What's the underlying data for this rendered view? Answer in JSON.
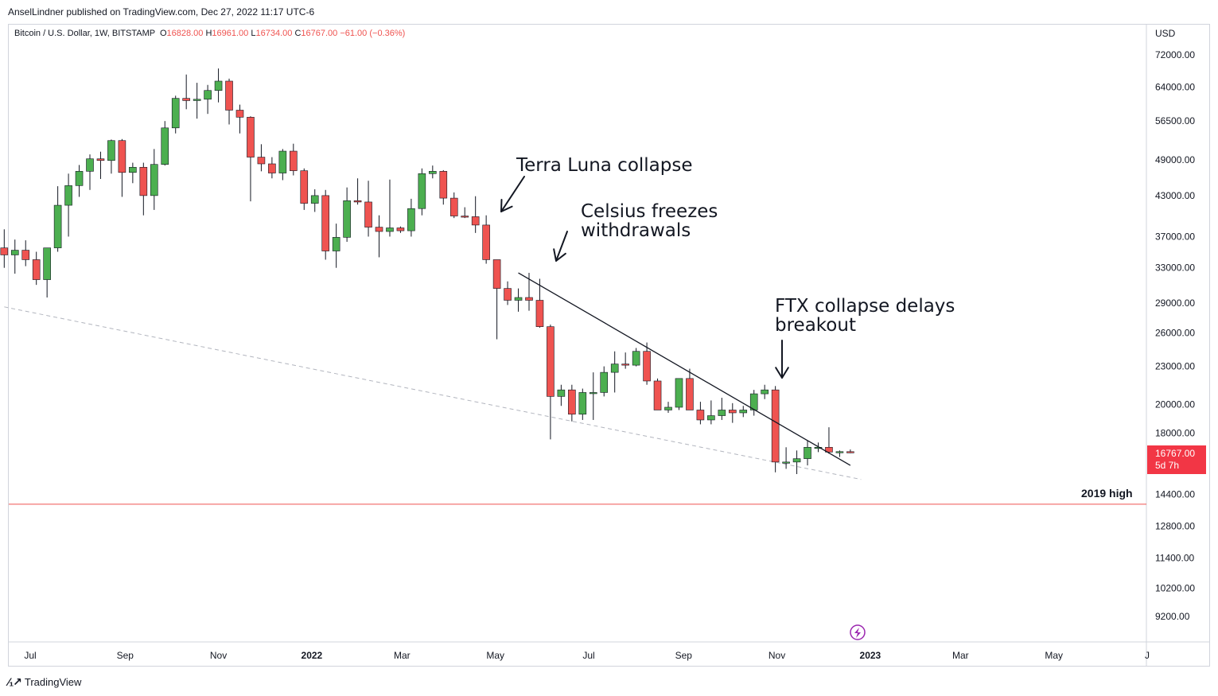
{
  "header": {
    "publisher": "AnselLindner published on TradingView.com, Dec 27, 2022 11:17 UTC-6"
  },
  "symbol": {
    "name": "Bitcoin / U.S. Dollar, 1W, BITSTAMP",
    "open_label": "O",
    "open": "16828.00",
    "high_label": "H",
    "high": "16961.00",
    "low_label": "L",
    "low": "16734.00",
    "close_label": "C",
    "close": "16767.00",
    "change": "−61.00 (−0.36%)"
  },
  "price_axis": {
    "currency": "USD",
    "ticks": [
      "72000.00",
      "64000.00",
      "56500.00",
      "49000.00",
      "43000.00",
      "37000.00",
      "33000.00",
      "29000.00",
      "26000.00",
      "23000.00",
      "20000.00",
      "18000.00",
      "14400.00",
      "12800.00",
      "11400.00",
      "10200.00",
      "9200.00"
    ]
  },
  "last_price": {
    "value": "16767.00",
    "countdown": "5d 7h"
  },
  "annotations": {
    "terra": "Terra Luna collapse",
    "celsius": "Celsius freezes\nwithdrawals",
    "ftx": "FTX collapse delays\nbreakout",
    "hline_label": "2019 high"
  },
  "footer": {
    "brand": "TradingView"
  },
  "colors": {
    "up": "#4caf50",
    "down": "#ef5350",
    "wick": "#131722",
    "hline": "#ef5350",
    "trend": "#131722",
    "support": "#b2b5be"
  },
  "chart_data": {
    "type": "candlestick",
    "title": "Bitcoin / U.S. Dollar, 1W, BITSTAMP",
    "scale": "log",
    "ylabel": "USD",
    "ylim": [
      8500,
      80000
    ],
    "x_ticks": [
      {
        "label": "Jul",
        "date": "2021-07-01"
      },
      {
        "label": "Sep",
        "date": "2021-09-01"
      },
      {
        "label": "Nov",
        "date": "2021-11-01"
      },
      {
        "label": "2022",
        "date": "2022-01-01",
        "bold": true
      },
      {
        "label": "Mar",
        "date": "2022-03-01"
      },
      {
        "label": "May",
        "date": "2022-05-01"
      },
      {
        "label": "Jul",
        "date": "2022-07-01"
      },
      {
        "label": "Sep",
        "date": "2022-09-01"
      },
      {
        "label": "Nov",
        "date": "2022-11-01"
      },
      {
        "label": "2023",
        "date": "2023-01-01",
        "bold": true
      },
      {
        "label": "Mar",
        "date": "2023-03-01"
      },
      {
        "label": "May",
        "date": "2023-05-01"
      },
      {
        "label": "J",
        "date": "2023-07-01"
      }
    ],
    "candles": [
      {
        "date": "2021-06-14",
        "o": 35500,
        "h": 38000,
        "l": 33000,
        "c": 34600
      },
      {
        "date": "2021-06-21",
        "o": 34600,
        "h": 36600,
        "l": 32300,
        "c": 35200
      },
      {
        "date": "2021-06-28",
        "o": 35200,
        "h": 36500,
        "l": 33200,
        "c": 34000
      },
      {
        "date": "2021-07-05",
        "o": 34000,
        "h": 35000,
        "l": 31000,
        "c": 31600
      },
      {
        "date": "2021-07-12",
        "o": 31600,
        "h": 35500,
        "l": 29600,
        "c": 35500
      },
      {
        "date": "2021-07-19",
        "o": 35500,
        "h": 44500,
        "l": 35000,
        "c": 41500
      },
      {
        "date": "2021-07-26",
        "o": 41500,
        "h": 46600,
        "l": 37000,
        "c": 44600
      },
      {
        "date": "2021-08-02",
        "o": 44600,
        "h": 48100,
        "l": 42800,
        "c": 47000
      },
      {
        "date": "2021-08-09",
        "o": 47000,
        "h": 50000,
        "l": 43900,
        "c": 49200
      },
      {
        "date": "2021-08-16",
        "o": 49200,
        "h": 50500,
        "l": 45700,
        "c": 48900
      },
      {
        "date": "2021-08-23",
        "o": 48900,
        "h": 52800,
        "l": 46600,
        "c": 52600
      },
      {
        "date": "2021-08-30",
        "o": 52600,
        "h": 52900,
        "l": 42800,
        "c": 46800
      },
      {
        "date": "2021-09-06",
        "o": 46800,
        "h": 48500,
        "l": 45000,
        "c": 47700
      },
      {
        "date": "2021-09-13",
        "o": 47700,
        "h": 48500,
        "l": 40000,
        "c": 43000
      },
      {
        "date": "2021-09-20",
        "o": 43000,
        "h": 51000,
        "l": 40800,
        "c": 48200
      },
      {
        "date": "2021-09-27",
        "o": 48200,
        "h": 56500,
        "l": 48000,
        "c": 55100
      },
      {
        "date": "2021-10-04",
        "o": 55100,
        "h": 62000,
        "l": 54000,
        "c": 61400
      },
      {
        "date": "2021-10-11",
        "o": 61400,
        "h": 67000,
        "l": 59000,
        "c": 60900
      },
      {
        "date": "2021-10-18",
        "o": 60900,
        "h": 65000,
        "l": 57000,
        "c": 61200
      },
      {
        "date": "2021-10-25",
        "o": 61200,
        "h": 64500,
        "l": 58000,
        "c": 63200
      },
      {
        "date": "2021-11-01",
        "o": 63200,
        "h": 68500,
        "l": 60500,
        "c": 65400
      },
      {
        "date": "2021-11-08",
        "o": 65400,
        "h": 66000,
        "l": 55800,
        "c": 58800
      },
      {
        "date": "2021-11-15",
        "o": 58800,
        "h": 60000,
        "l": 54000,
        "c": 57300
      },
      {
        "date": "2021-11-22",
        "o": 57300,
        "h": 57500,
        "l": 42100,
        "c": 49500
      },
      {
        "date": "2021-11-29",
        "o": 49500,
        "h": 51900,
        "l": 47000,
        "c": 48300
      },
      {
        "date": "2021-12-06",
        "o": 48300,
        "h": 49500,
        "l": 45800,
        "c": 46700
      },
      {
        "date": "2021-12-13",
        "o": 46700,
        "h": 51000,
        "l": 45500,
        "c": 50600
      },
      {
        "date": "2021-12-20",
        "o": 50600,
        "h": 52000,
        "l": 46300,
        "c": 47100
      },
      {
        "date": "2021-12-27",
        "o": 47100,
        "h": 47500,
        "l": 40800,
        "c": 41800
      },
      {
        "date": "2022-01-03",
        "o": 41800,
        "h": 44000,
        "l": 40500,
        "c": 43000
      },
      {
        "date": "2022-01-10",
        "o": 43000,
        "h": 43900,
        "l": 34000,
        "c": 35100
      },
      {
        "date": "2022-01-17",
        "o": 35100,
        "h": 38800,
        "l": 33000,
        "c": 36900
      },
      {
        "date": "2022-01-24",
        "o": 36900,
        "h": 44300,
        "l": 36300,
        "c": 42200
      },
      {
        "date": "2022-01-31",
        "o": 42200,
        "h": 45800,
        "l": 41600,
        "c": 42000
      },
      {
        "date": "2022-02-07",
        "o": 42000,
        "h": 45400,
        "l": 37000,
        "c": 38300
      },
      {
        "date": "2022-02-14",
        "o": 38300,
        "h": 40000,
        "l": 34300,
        "c": 37700
      },
      {
        "date": "2022-02-21",
        "o": 37700,
        "h": 45600,
        "l": 37000,
        "c": 38200
      },
      {
        "date": "2022-02-28",
        "o": 38200,
        "h": 38400,
        "l": 37500,
        "c": 37800
      },
      {
        "date": "2022-03-07",
        "o": 37800,
        "h": 42500,
        "l": 37000,
        "c": 41000
      },
      {
        "date": "2022-03-14",
        "o": 41000,
        "h": 47500,
        "l": 40000,
        "c": 46600
      },
      {
        "date": "2022-03-21",
        "o": 46600,
        "h": 48000,
        "l": 45800,
        "c": 47000
      },
      {
        "date": "2022-03-28",
        "o": 47000,
        "h": 47200,
        "l": 41600,
        "c": 42600
      },
      {
        "date": "2022-04-04",
        "o": 42600,
        "h": 43500,
        "l": 39600,
        "c": 39900
      },
      {
        "date": "2022-04-11",
        "o": 39900,
        "h": 41200,
        "l": 39600,
        "c": 39800
      },
      {
        "date": "2022-04-18",
        "o": 39800,
        "h": 42900,
        "l": 37500,
        "c": 38600
      },
      {
        "date": "2022-04-25",
        "o": 38600,
        "h": 40000,
        "l": 33500,
        "c": 34000
      },
      {
        "date": "2022-05-02",
        "o": 34000,
        "h": 34000,
        "l": 25400,
        "c": 30600
      },
      {
        "date": "2022-05-09",
        "o": 30600,
        "h": 31400,
        "l": 28800,
        "c": 29300
      },
      {
        "date": "2022-05-16",
        "o": 29300,
        "h": 30600,
        "l": 28100,
        "c": 29600
      },
      {
        "date": "2022-05-23",
        "o": 29600,
        "h": 32400,
        "l": 28200,
        "c": 29300
      },
      {
        "date": "2022-05-30",
        "o": 29300,
        "h": 31700,
        "l": 26500,
        "c": 26600
      },
      {
        "date": "2022-06-06",
        "o": 26600,
        "h": 26800,
        "l": 17600,
        "c": 20600
      },
      {
        "date": "2022-06-13",
        "o": 20600,
        "h": 21500,
        "l": 19900,
        "c": 21100
      },
      {
        "date": "2022-06-20",
        "o": 21100,
        "h": 21500,
        "l": 18800,
        "c": 19300
      },
      {
        "date": "2022-06-27",
        "o": 19300,
        "h": 21200,
        "l": 18900,
        "c": 20900
      },
      {
        "date": "2022-07-04",
        "o": 20900,
        "h": 22500,
        "l": 18900,
        "c": 20900
      },
      {
        "date": "2022-07-11",
        "o": 20900,
        "h": 23000,
        "l": 20600,
        "c": 22500
      },
      {
        "date": "2022-07-18",
        "o": 22500,
        "h": 24300,
        "l": 20900,
        "c": 23200
      },
      {
        "date": "2022-07-25",
        "o": 23200,
        "h": 24200,
        "l": 22800,
        "c": 23100
      },
      {
        "date": "2022-08-01",
        "o": 23100,
        "h": 24600,
        "l": 23000,
        "c": 24300
      },
      {
        "date": "2022-08-08",
        "o": 24300,
        "h": 25100,
        "l": 21500,
        "c": 21800
      },
      {
        "date": "2022-08-15",
        "o": 21800,
        "h": 22000,
        "l": 19600,
        "c": 19600
      },
      {
        "date": "2022-08-22",
        "o": 19600,
        "h": 20200,
        "l": 19400,
        "c": 19800
      },
      {
        "date": "2022-08-29",
        "o": 19800,
        "h": 22000,
        "l": 19600,
        "c": 22000
      },
      {
        "date": "2022-09-05",
        "o": 22000,
        "h": 22800,
        "l": 19700,
        "c": 19600
      },
      {
        "date": "2022-09-12",
        "o": 19600,
        "h": 20200,
        "l": 18600,
        "c": 18900
      },
      {
        "date": "2022-09-19",
        "o": 18900,
        "h": 20300,
        "l": 18600,
        "c": 19200
      },
      {
        "date": "2022-09-26",
        "o": 19200,
        "h": 20500,
        "l": 18900,
        "c": 19600
      },
      {
        "date": "2022-10-03",
        "o": 19600,
        "h": 20100,
        "l": 18700,
        "c": 19400
      },
      {
        "date": "2022-10-10",
        "o": 19400,
        "h": 19900,
        "l": 19100,
        "c": 19600
      },
      {
        "date": "2022-10-17",
        "o": 19600,
        "h": 21100,
        "l": 19200,
        "c": 20800
      },
      {
        "date": "2022-10-24",
        "o": 20800,
        "h": 21500,
        "l": 20400,
        "c": 21100
      },
      {
        "date": "2022-10-31",
        "o": 21100,
        "h": 21400,
        "l": 15600,
        "c": 16200
      },
      {
        "date": "2022-11-07",
        "o": 16200,
        "h": 17100,
        "l": 15800,
        "c": 16200
      },
      {
        "date": "2022-11-14",
        "o": 16200,
        "h": 16900,
        "l": 15500,
        "c": 16400
      },
      {
        "date": "2022-11-21",
        "o": 16400,
        "h": 17500,
        "l": 16000,
        "c": 17100
      },
      {
        "date": "2022-11-28",
        "o": 17100,
        "h": 17400,
        "l": 16800,
        "c": 17100
      },
      {
        "date": "2022-12-05",
        "o": 17100,
        "h": 18400,
        "l": 16700,
        "c": 16800
      },
      {
        "date": "2022-12-12",
        "o": 16800,
        "h": 16900,
        "l": 16500,
        "c": 16830
      },
      {
        "date": "2022-12-19",
        "o": 16828,
        "h": 16961,
        "l": 16734,
        "c": 16767
      }
    ],
    "trendline": [
      {
        "date": "2022-05-16",
        "price": 32400
      },
      {
        "date": "2022-12-19",
        "price": 16000
      }
    ],
    "support_line": [
      {
        "date": "2021-06-14",
        "price": 28600
      },
      {
        "date": "2022-12-26",
        "price": 15200
      }
    ],
    "horizontal_line": {
      "price": 13880,
      "label": "2019 high"
    }
  }
}
